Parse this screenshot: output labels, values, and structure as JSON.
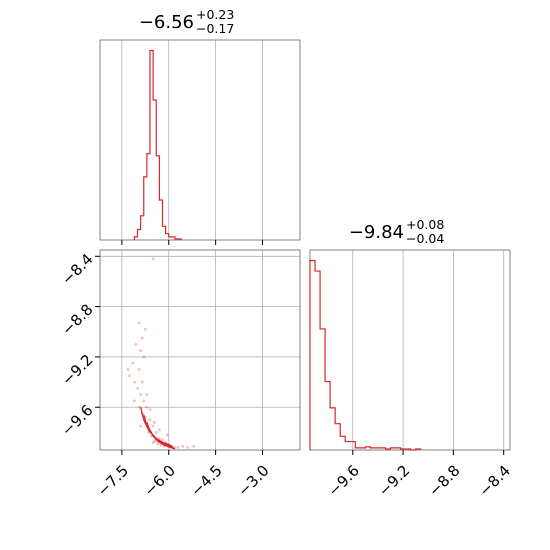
{
  "chart_data": [
    {
      "panel": "marginal-1",
      "type": "histogram",
      "title": {
        "base": "−6.56",
        "sup": "+0.23",
        "sub": "−0.17"
      },
      "xlim": [
        -8.2,
        -1.8
      ],
      "xticks": [
        -7.5,
        -6.0,
        -4.5,
        -3.0
      ],
      "bins": {
        "edges": [
          -7.1,
          -7.0,
          -6.9,
          -6.8,
          -6.7,
          -6.6,
          -6.5,
          -6.4,
          -6.3,
          -6.2,
          -6.1,
          -6.0,
          -5.9,
          -5.8,
          -5.7,
          -5.6
        ],
        "heights": [
          3,
          10,
          23,
          60,
          82,
          180,
          133,
          80,
          38,
          13,
          6,
          3,
          3,
          1,
          1
        ]
      },
      "ylim": [
        0,
        190
      ],
      "grid": true
    },
    {
      "panel": "marginal-2",
      "type": "histogram",
      "title": {
        "base": "−9.84",
        "sup": "+0.08",
        "sub": "−0.04"
      },
      "xlim": [
        -9.94,
        -8.35
      ],
      "xticks": [
        -9.6,
        -9.2,
        -8.8,
        -8.4
      ],
      "xtick_labels": [
        "−9.6",
        "−9.2",
        "−8.8",
        "−8.4"
      ],
      "bins": {
        "edges": [
          -9.94,
          -9.9,
          -9.86,
          -9.82,
          -9.78,
          -9.74,
          -9.7,
          -9.66,
          -9.62,
          -9.58,
          -9.54,
          -9.5,
          -9.46,
          -9.42,
          -9.38,
          -9.34,
          -9.3,
          -9.26,
          -9.22,
          -9.18,
          -9.14,
          -9.1,
          -9.06
        ],
        "heights": [
          180,
          170,
          115,
          65,
          40,
          25,
          13,
          8,
          8,
          2,
          2,
          3,
          2,
          2,
          2,
          1,
          2,
          2,
          1,
          1,
          0,
          1
        ]
      },
      "ylim": [
        0,
        190
      ],
      "grid": true
    },
    {
      "panel": "joint",
      "type": "scatter",
      "xlim": [
        -8.2,
        -1.8
      ],
      "ylim": [
        -9.94,
        -8.35
      ],
      "xticks": [
        -7.5,
        -6.0,
        -4.5,
        -3.0
      ],
      "xtick_labels": [
        "−7.5",
        "−6.0",
        "−4.5",
        "−3.0"
      ],
      "yticks": [
        -8.4,
        -8.8,
        -9.2,
        -9.6
      ],
      "ytick_labels": [
        "−8.4",
        "−8.8",
        "−9.2",
        "−9.6"
      ],
      "points": [
        [
          -6.95,
          -8.93
        ],
        [
          -7.05,
          -9.1
        ],
        [
          -6.85,
          -9.05
        ],
        [
          -7.15,
          -9.25
        ],
        [
          -6.75,
          -8.98
        ],
        [
          -7.3,
          -9.3
        ],
        [
          -7.25,
          -9.35
        ],
        [
          -6.9,
          -9.15
        ],
        [
          -6.95,
          -9.3
        ],
        [
          -7.1,
          -9.4
        ],
        [
          -6.8,
          -9.2
        ],
        [
          -7.0,
          -9.45
        ],
        [
          -6.85,
          -9.4
        ],
        [
          -6.5,
          -8.42
        ],
        [
          -7.1,
          -9.55
        ],
        [
          -6.9,
          -9.5
        ],
        [
          -6.8,
          -9.55
        ],
        [
          -6.95,
          -9.6
        ],
        [
          -6.7,
          -9.6
        ],
        [
          -6.85,
          -9.65
        ],
        [
          -6.6,
          -9.7
        ],
        [
          -6.75,
          -9.72
        ],
        [
          -6.5,
          -9.75
        ],
        [
          -6.65,
          -9.8
        ],
        [
          -6.4,
          -9.8
        ],
        [
          -6.55,
          -9.83
        ],
        [
          -6.3,
          -9.85
        ],
        [
          -6.45,
          -9.87
        ],
        [
          -6.2,
          -9.86
        ],
        [
          -6.35,
          -9.89
        ],
        [
          -6.1,
          -9.88
        ],
        [
          -6.25,
          -9.9
        ],
        [
          -6.0,
          -9.9
        ],
        [
          -6.15,
          -9.91
        ],
        [
          -5.9,
          -9.91
        ],
        [
          -5.8,
          -9.92
        ],
        [
          -5.7,
          -9.92
        ],
        [
          -5.55,
          -9.91
        ],
        [
          -5.4,
          -9.92
        ],
        [
          -5.2,
          -9.91
        ],
        [
          -6.7,
          -9.5
        ],
        [
          -6.6,
          -9.62
        ],
        [
          -6.75,
          -9.68
        ],
        [
          -6.45,
          -9.72
        ],
        [
          -6.9,
          -9.75
        ],
        [
          -6.3,
          -9.78
        ],
        [
          -6.5,
          -9.88
        ],
        [
          -6.05,
          -9.82
        ]
      ],
      "contours": [
        [
          [
            -6.9,
            -9.6
          ],
          [
            -6.8,
            -9.7
          ],
          [
            -6.65,
            -9.78
          ],
          [
            -6.45,
            -9.84
          ],
          [
            -6.2,
            -9.88
          ],
          [
            -5.95,
            -9.9
          ]
        ],
        [
          [
            -6.8,
            -9.66
          ],
          [
            -6.7,
            -9.75
          ],
          [
            -6.55,
            -9.81
          ],
          [
            -6.35,
            -9.86
          ],
          [
            -6.1,
            -9.89
          ],
          [
            -5.9,
            -9.91
          ]
        ],
        [
          [
            -6.7,
            -9.72
          ],
          [
            -6.6,
            -9.79
          ],
          [
            -6.45,
            -9.84
          ],
          [
            -6.25,
            -9.88
          ],
          [
            -6.05,
            -9.9
          ],
          [
            -5.85,
            -9.92
          ]
        ],
        [
          [
            -6.6,
            -9.78
          ],
          [
            -6.5,
            -9.83
          ],
          [
            -6.35,
            -9.87
          ],
          [
            -6.15,
            -9.9
          ],
          [
            -5.95,
            -9.92
          ],
          [
            -5.8,
            -9.93
          ]
        ]
      ],
      "grid": true
    }
  ],
  "colors": {
    "series": "#d62728",
    "axes": "#808080",
    "grid": "#b0b0b0",
    "text": "#000000"
  }
}
